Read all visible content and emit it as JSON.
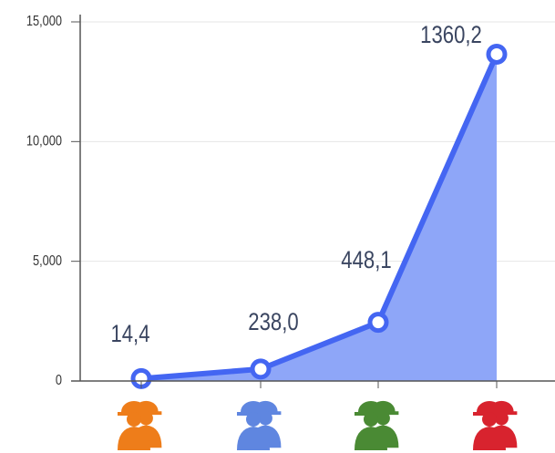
{
  "chart_data": {
    "type": "area",
    "categories": [
      null,
      null,
      null,
      null
    ],
    "values": [
      100,
      500,
      2450,
      13650
    ],
    "annotations": [
      "14,4",
      "238,0",
      "448,1",
      "1360,2"
    ],
    "color": "#4466f2",
    "fill": "#8ea6f8",
    "icon_colors": [
      "#ee7d1a",
      "#5f86e0",
      "#4a8a34",
      "#d8232e"
    ],
    "ylim": [
      0,
      15000
    ],
    "yticks": [
      0,
      {
        "value": 5000,
        "label": "5,000"
      },
      {
        "value": 10000,
        "label": "10,000"
      },
      {
        "value": 15000,
        "label": "15,000"
      }
    ],
    "grid": true
  }
}
